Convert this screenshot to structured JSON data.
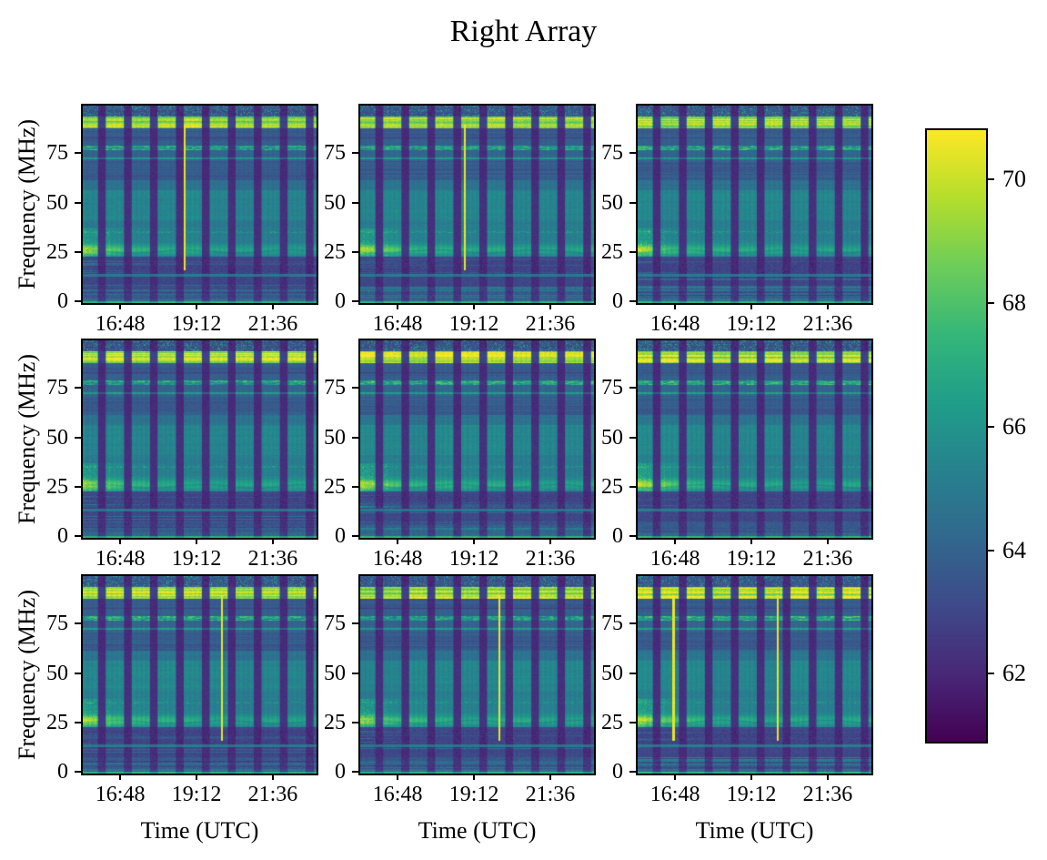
{
  "figure": {
    "title": "Right Array",
    "background_color": "#ffffff",
    "text_color": "#000000"
  },
  "chart_data": {
    "type": "heatmap",
    "subtype": "spectrogram-grid",
    "title": "Right Array",
    "grid": {
      "rows": 3,
      "cols": 3
    },
    "xlabel": "Time (UTC)",
    "ylabel": "Frequency (MHz)",
    "x_range_utc": [
      "15:34",
      "22:55"
    ],
    "x_ticks": [
      "16:48",
      "19:12",
      "21:36"
    ],
    "y_range_mhz": [
      0,
      100
    ],
    "y_ticks": [
      0,
      25,
      50,
      75
    ],
    "colormap": "viridis",
    "colorbar": {
      "vmin": 60.9,
      "vmax": 70.8,
      "ticks": [
        62,
        64,
        66,
        68,
        70
      ],
      "side": "right"
    },
    "observing_blocks": {
      "count": 9,
      "period_minutes": 49,
      "on_minutes": 35,
      "gap_level_db": 62
    },
    "spectral_features": [
      {
        "name": "fm-broadcast-band",
        "freq_mhz": [
          88.5,
          94.5
        ],
        "level_db": 70.5,
        "texture": "bright striated rows"
      },
      {
        "name": "mottled-top-edge",
        "freq_mhz": [
          94.5,
          100
        ],
        "level_db": 63.5,
        "texture": "dark with yellow speckles"
      },
      {
        "name": "narrow-line",
        "freq_mhz": 78.7,
        "level_db": 67,
        "texture": "streaky dashed"
      },
      {
        "name": "narrow-line",
        "freq_mhz": 73.2,
        "level_db": 66.3,
        "texture": "thin continuous"
      },
      {
        "name": "dark-band",
        "freq_mhz": [
          62,
          72
        ],
        "level_db": 63.8
      },
      {
        "name": "plateau",
        "freq_mhz": [
          37,
          58
        ],
        "level_db": 65.3
      },
      {
        "name": "dotted-line",
        "freq_mhz": 36,
        "level_db": 66.5
      },
      {
        "name": "galactic-hump",
        "freq_mhz": [
          22.5,
          37.5
        ],
        "peak_mhz": 27,
        "level_db": 66.6,
        "note": "brightest (~70 dB, yellow) at start of track, fading with time"
      },
      {
        "name": "quiet-band",
        "freq_mhz": [
          15,
          22
        ],
        "level_db": 63,
        "texture": "occasional yellow streaks at early times"
      },
      {
        "name": "continuous-line",
        "freq_mhz": 14.5,
        "level_db": 65,
        "note": "persists through observing gaps"
      },
      {
        "name": "ionospheric-streaks",
        "freq_mhz": [
          2,
          8.5
        ],
        "level_db": 64.5,
        "texture": "horizontal yellow streaks"
      },
      {
        "name": "bottom-edge-line",
        "freq_mhz": [
          0,
          1
        ],
        "level_db": 67.2
      }
    ],
    "event_freq_span_mhz": [
      16.5,
      90
    ],
    "event_level_db": 70.5,
    "panels": [
      {
        "row": 0,
        "col": 0,
        "events_utc": [
          "18:46"
        ]
      },
      {
        "row": 0,
        "col": 1,
        "events_utc": [
          "18:51"
        ]
      },
      {
        "row": 0,
        "col": 2,
        "events_utc": []
      },
      {
        "row": 1,
        "col": 0,
        "events_utc": []
      },
      {
        "row": 1,
        "col": 1,
        "events_utc": []
      },
      {
        "row": 1,
        "col": 2,
        "events_utc": []
      },
      {
        "row": 2,
        "col": 0,
        "events_utc": [
          "19:55"
        ]
      },
      {
        "row": 2,
        "col": 1,
        "events_utc": [
          "19:55"
        ]
      },
      {
        "row": 2,
        "col": 2,
        "events_utc": [
          "16:41",
          "19:57"
        ]
      }
    ]
  }
}
